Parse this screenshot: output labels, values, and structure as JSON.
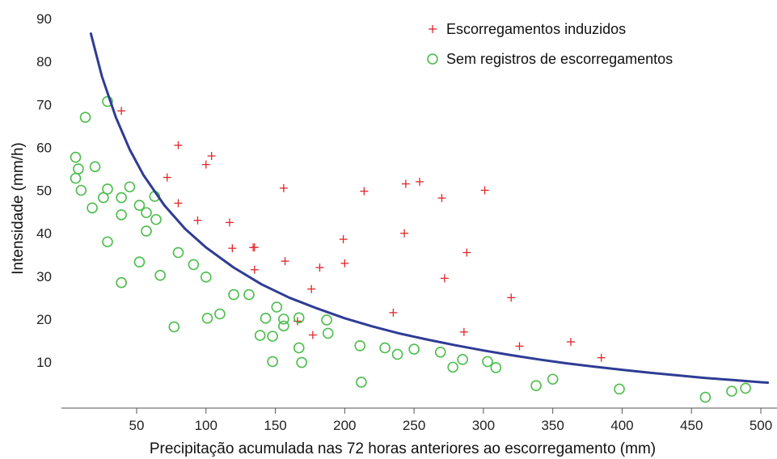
{
  "chart_data": {
    "type": "scatter",
    "xlabel": "Precipitação acumulada nas 72 horas anteriores ao escorregamento (mm)",
    "ylabel": "Intensidade (mm/h)",
    "xlim": [
      0,
      510
    ],
    "ylim": [
      0,
      90
    ],
    "x_ticks": [
      50,
      100,
      150,
      200,
      250,
      300,
      350,
      400,
      450,
      500
    ],
    "x_tick_labels": [
      "50",
      "100",
      "150",
      "200",
      "250",
      "300",
      "350",
      "400",
      "450",
      "500"
    ],
    "y_ticks": [
      10,
      20,
      30,
      40,
      50,
      60,
      70,
      80,
      90
    ],
    "y_tick_labels": [
      "10",
      "20",
      "30",
      "40",
      "50",
      "60",
      "70",
      "80",
      "90"
    ],
    "grid": false,
    "legend_position": "top-right",
    "series": [
      {
        "name": "Escorregamentos induzidos",
        "marker": "plus",
        "color": "#e0262b",
        "points": [
          [
            39,
            68.5
          ],
          [
            80,
            60.5
          ],
          [
            100,
            56
          ],
          [
            104,
            58
          ],
          [
            72,
            53
          ],
          [
            80,
            47
          ],
          [
            94,
            43
          ],
          [
            117,
            42.5
          ],
          [
            119,
            36.5
          ],
          [
            134,
            36.7
          ],
          [
            135,
            36.7
          ],
          [
            135,
            31.5
          ],
          [
            156,
            50.5
          ],
          [
            157,
            33.5
          ],
          [
            166,
            19.5
          ],
          [
            176,
            27
          ],
          [
            177,
            16.3
          ],
          [
            182,
            32
          ],
          [
            199,
            38.6
          ],
          [
            200,
            33
          ],
          [
            214,
            49.8
          ],
          [
            235,
            21.5
          ],
          [
            243,
            40
          ],
          [
            244,
            51.5
          ],
          [
            254,
            52
          ],
          [
            270,
            48.2
          ],
          [
            272,
            29.5
          ],
          [
            286,
            17
          ],
          [
            288,
            35.5
          ],
          [
            301,
            50
          ],
          [
            320,
            25
          ],
          [
            326,
            13.7
          ],
          [
            363,
            14.7
          ],
          [
            385,
            11
          ]
        ]
      },
      {
        "name": "Sem registros de escorregamentos",
        "marker": "circle",
        "color": "#4bbd4b",
        "points": [
          [
            6,
            57.7
          ],
          [
            6,
            52.8
          ],
          [
            8,
            55
          ],
          [
            10,
            50
          ],
          [
            13,
            67
          ],
          [
            18,
            45.9
          ],
          [
            20,
            55.5
          ],
          [
            26,
            48.3
          ],
          [
            29,
            70.7
          ],
          [
            29,
            50.3
          ],
          [
            29,
            38
          ],
          [
            39,
            48.3
          ],
          [
            39,
            44.3
          ],
          [
            39,
            28.5
          ],
          [
            45,
            50.8
          ],
          [
            52,
            46.5
          ],
          [
            52,
            33.3
          ],
          [
            57,
            44.8
          ],
          [
            57,
            40.5
          ],
          [
            63,
            48.6
          ],
          [
            64,
            43.2
          ],
          [
            67,
            30.2
          ],
          [
            77,
            18.2
          ],
          [
            80,
            35.5
          ],
          [
            91,
            32.7
          ],
          [
            100,
            29.8
          ],
          [
            101,
            20.2
          ],
          [
            110,
            21.2
          ],
          [
            120,
            25.7
          ],
          [
            131,
            25.7
          ],
          [
            139,
            16.2
          ],
          [
            143,
            20.2
          ],
          [
            148,
            16
          ],
          [
            148,
            10.1
          ],
          [
            151,
            22.8
          ],
          [
            156,
            20
          ],
          [
            156,
            18.4
          ],
          [
            167,
            13.3
          ],
          [
            167,
            20.3
          ],
          [
            169,
            9.9
          ],
          [
            187,
            19.8
          ],
          [
            188,
            16.7
          ],
          [
            211,
            13.8
          ],
          [
            212,
            5.3
          ],
          [
            229,
            13.3
          ],
          [
            238,
            11.8
          ],
          [
            250,
            13
          ],
          [
            269,
            12.3
          ],
          [
            278,
            8.8
          ],
          [
            285,
            10.6
          ],
          [
            303,
            10.1
          ],
          [
            309,
            8.7
          ],
          [
            338,
            4.5
          ],
          [
            350,
            6
          ],
          [
            398,
            3.7
          ],
          [
            460,
            1.8
          ],
          [
            479,
            3.2
          ],
          [
            489,
            3.9
          ]
        ]
      }
    ],
    "curve": {
      "type": "line",
      "color": "#2e3c95",
      "points": [
        [
          17,
          86.5
        ],
        [
          25,
          76.5
        ],
        [
          35,
          67
        ],
        [
          45,
          59.5
        ],
        [
          55,
          53.5
        ],
        [
          70,
          46.5
        ],
        [
          85,
          41
        ],
        [
          100,
          36.7
        ],
        [
          120,
          32
        ],
        [
          140,
          28.1
        ],
        [
          160,
          25
        ],
        [
          180,
          22.5
        ],
        [
          200,
          20.2
        ],
        [
          220,
          18.3
        ],
        [
          240,
          16.6
        ],
        [
          260,
          15.2
        ],
        [
          280,
          13.9
        ],
        [
          300,
          12.7
        ],
        [
          320,
          11.6
        ],
        [
          340,
          10.6
        ],
        [
          360,
          9.7
        ],
        [
          380,
          8.9
        ],
        [
          400,
          8.2
        ],
        [
          420,
          7.5
        ],
        [
          440,
          6.9
        ],
        [
          460,
          6.3
        ],
        [
          480,
          5.8
        ],
        [
          500,
          5.3
        ],
        [
          505,
          5.2
        ]
      ]
    }
  }
}
